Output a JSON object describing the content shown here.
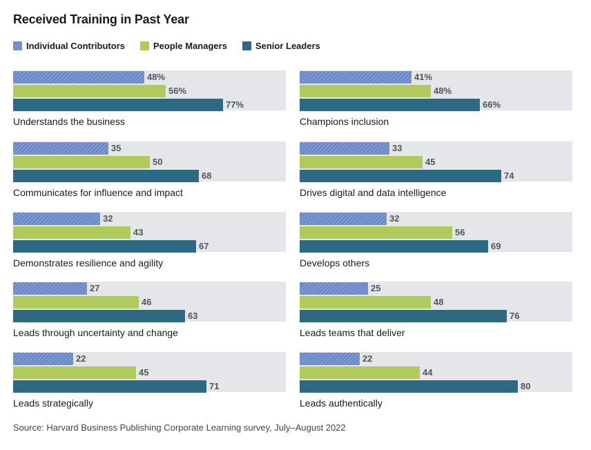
{
  "chart_data": {
    "type": "bar",
    "orientation": "horizontal",
    "title": "Received Training in Past Year",
    "xlim": [
      0,
      100
    ],
    "legend_position": "top-left",
    "series": [
      {
        "key": "ic",
        "name": "Individual Contributors",
        "color": "#7a97cf"
      },
      {
        "key": "pm",
        "name": "People Managers",
        "color": "#b0cb5b"
      },
      {
        "key": "sl",
        "name": "Senior Leaders",
        "color": "#2e6983"
      }
    ],
    "panels": [
      {
        "category": "Understands the business",
        "values": [
          48,
          56,
          77
        ],
        "labels": [
          "48%",
          "56%",
          "77%"
        ]
      },
      {
        "category": "Champions inclusion",
        "values": [
          41,
          48,
          66
        ],
        "labels": [
          "41%",
          "48%",
          "66%"
        ]
      },
      {
        "category": "Communicates for influence and impact",
        "values": [
          35,
          50,
          68
        ],
        "labels": [
          "35",
          "50",
          "68"
        ]
      },
      {
        "category": "Drives digital and data intelligence",
        "values": [
          33,
          45,
          74
        ],
        "labels": [
          "33",
          "45",
          "74"
        ]
      },
      {
        "category": "Demonstrates resilience and agility",
        "values": [
          32,
          43,
          67
        ],
        "labels": [
          "32",
          "43",
          "67"
        ]
      },
      {
        "category": "Develops others",
        "values": [
          32,
          56,
          69
        ],
        "labels": [
          "32",
          "56",
          "69"
        ]
      },
      {
        "category": "Leads through uncertainty and change",
        "values": [
          27,
          46,
          63
        ],
        "labels": [
          "27",
          "46",
          "63"
        ]
      },
      {
        "category": "Leads teams that deliver",
        "values": [
          25,
          48,
          76
        ],
        "labels": [
          "25",
          "48",
          "76"
        ]
      },
      {
        "category": "Leads strategically",
        "values": [
          22,
          45,
          71
        ],
        "labels": [
          "22",
          "45",
          "71"
        ]
      },
      {
        "category": "Leads authentically",
        "values": [
          22,
          44,
          80
        ],
        "labels": [
          "22",
          "44",
          "80"
        ]
      }
    ],
    "source": "Source: Harvard Business Publishing Corporate Learning survey, July–August 2022"
  }
}
